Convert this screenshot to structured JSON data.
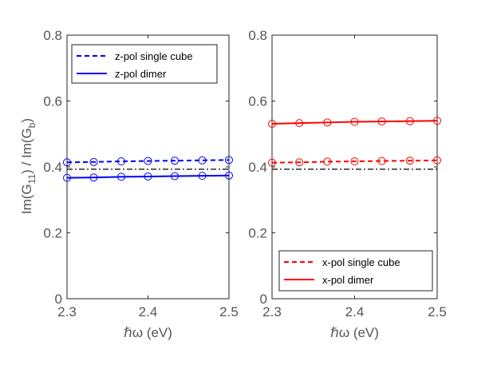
{
  "chart_data": [
    {
      "type": "line",
      "x": [
        2.3,
        2.333,
        2.367,
        2.4,
        2.433,
        2.467,
        2.5
      ],
      "xlim": [
        2.3,
        2.5
      ],
      "ylim": [
        0,
        0.8
      ],
      "xticks": [
        "2.3",
        "2.4",
        "2.5"
      ],
      "yticks": [
        "0",
        "0.2",
        "0.4",
        "0.6",
        "0.8"
      ],
      "xlabel": "ℏω (eV)",
      "ylabel": "Im(G11) / Im(Gb)",
      "reference_line": {
        "y": 0.393,
        "color": "#000000",
        "style": "dash-dot"
      },
      "legend": {
        "position": "top"
      },
      "series": [
        {
          "name": "z-pol single cube",
          "color": "#0000ff",
          "style": "dashed",
          "values": [
            0.414,
            0.415,
            0.417,
            0.418,
            0.419,
            0.42,
            0.421
          ]
        },
        {
          "name": "z-pol dimer",
          "color": "#0000ff",
          "style": "solid",
          "values": [
            0.367,
            0.368,
            0.37,
            0.371,
            0.372,
            0.373,
            0.374
          ]
        }
      ]
    },
    {
      "type": "line",
      "x": [
        2.3,
        2.333,
        2.367,
        2.4,
        2.433,
        2.467,
        2.5
      ],
      "xlim": [
        2.3,
        2.5
      ],
      "ylim": [
        0,
        0.8
      ],
      "xticks": [
        "2.3",
        "2.4",
        "2.5"
      ],
      "yticks": [
        "0",
        "0.2",
        "0.4",
        "0.6",
        "0.8"
      ],
      "xlabel": "ℏω (eV)",
      "ylabel": "",
      "reference_line": {
        "y": 0.393,
        "color": "#000000",
        "style": "dash-dot"
      },
      "legend": {
        "position": "bottom"
      },
      "series": [
        {
          "name": "x-pol single cube",
          "color": "#ff0000",
          "style": "dashed",
          "values": [
            0.413,
            0.414,
            0.416,
            0.417,
            0.418,
            0.419,
            0.42
          ]
        },
        {
          "name": "x-pol dimer",
          "color": "#ff0000",
          "style": "solid",
          "values": [
            0.531,
            0.533,
            0.535,
            0.537,
            0.538,
            0.539,
            0.54
          ]
        }
      ]
    }
  ]
}
